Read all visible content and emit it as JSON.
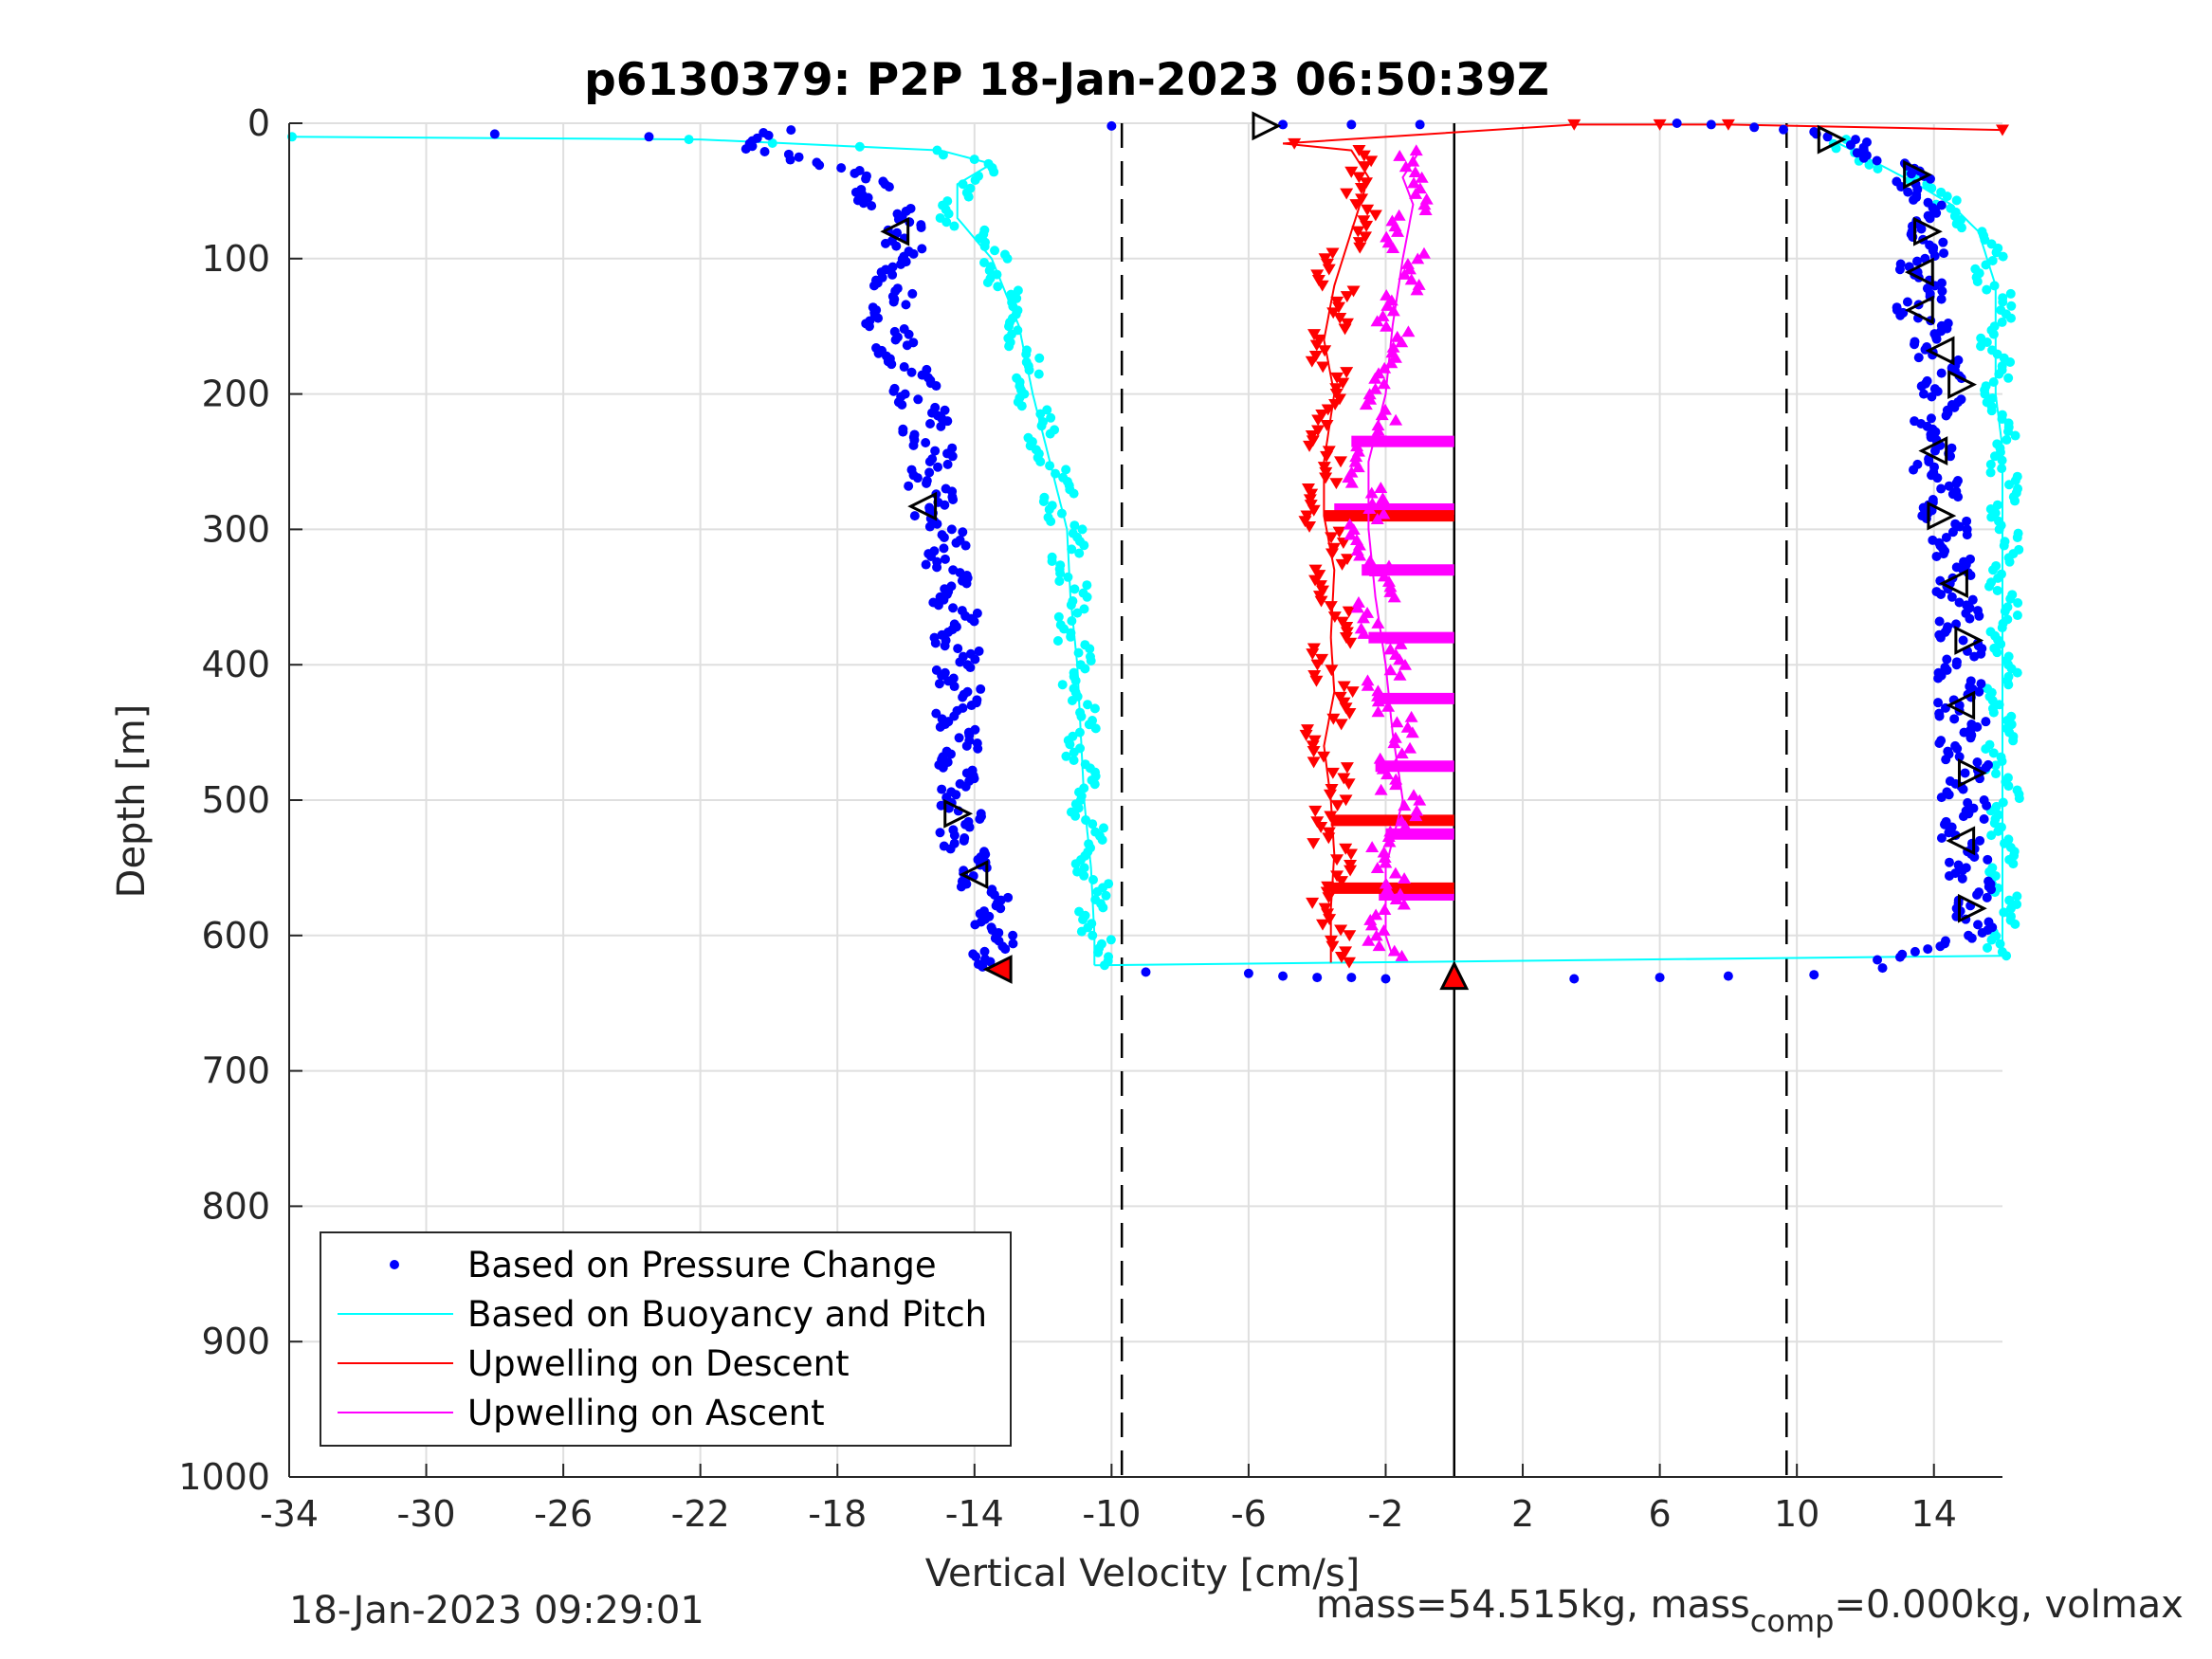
{
  "chart_data": {
    "type": "scatter",
    "title": "p6130379: P2P 18-Jan-2023 06:50:39Z",
    "xlabel": "Vertical Velocity [cm/s]",
    "ylabel": "Depth [m]",
    "xlim": [
      -34,
      16
    ],
    "ylim": [
      0,
      1000
    ],
    "y_reversed": true,
    "xticks": [
      -34,
      -30,
      -26,
      -22,
      -18,
      -14,
      -10,
      -6,
      -2,
      2,
      6,
      10,
      14
    ],
    "yticks": [
      0,
      100,
      200,
      300,
      400,
      500,
      600,
      700,
      800,
      900,
      1000
    ],
    "grid": true,
    "legend_position": "bottom-left",
    "reference_lines": [
      {
        "x": -9.7,
        "style": "dashed"
      },
      {
        "x": 0,
        "style": "solid"
      },
      {
        "x": 9.7,
        "style": "dashed"
      }
    ],
    "series": [
      {
        "name": "Based on Pressure Change",
        "color": "#0000ff",
        "marker": "dot",
        "descent": [
          [
            -20,
            5
          ],
          [
            -21,
            15
          ],
          [
            -19,
            25
          ],
          [
            -17,
            45
          ],
          [
            -16.5,
            65
          ],
          [
            -16,
            85
          ],
          [
            -16.3,
            110
          ],
          [
            -16.5,
            150
          ],
          [
            -16,
            180
          ],
          [
            -15.5,
            210
          ],
          [
            -15.3,
            250
          ],
          [
            -15.2,
            280
          ],
          [
            -14.8,
            320
          ],
          [
            -14.6,
            360
          ],
          [
            -14.5,
            420
          ],
          [
            -14.5,
            470
          ],
          [
            -14.5,
            510
          ],
          [
            -14,
            550
          ],
          [
            -13.5,
            580
          ],
          [
            -13.5,
            610
          ],
          [
            -13.5,
            625
          ]
        ],
        "ascent": [
          [
            8.5,
            3
          ],
          [
            10.5,
            8
          ],
          [
            12,
            18
          ],
          [
            13.5,
            45
          ],
          [
            13.8,
            80
          ],
          [
            13.6,
            110
          ],
          [
            13.6,
            140
          ],
          [
            14.2,
            175
          ],
          [
            14.2,
            200
          ],
          [
            14,
            240
          ],
          [
            14.2,
            280
          ],
          [
            14.5,
            330
          ],
          [
            14.7,
            380
          ],
          [
            14.8,
            430
          ],
          [
            14.9,
            480
          ],
          [
            14.8,
            520
          ],
          [
            15,
            560
          ],
          [
            15.2,
            590
          ],
          [
            14.5,
            610
          ],
          [
            13,
            618
          ]
        ],
        "bottom": [
          [
            -9,
            627
          ],
          [
            -6,
            628
          ],
          [
            -5,
            630
          ],
          [
            -4,
            631
          ],
          [
            -3,
            631
          ],
          [
            -2,
            632
          ],
          [
            3.5,
            632
          ],
          [
            6,
            631
          ],
          [
            8,
            630
          ],
          [
            10.5,
            629
          ],
          [
            12.5,
            624
          ]
        ],
        "surface": [
          [
            -28,
            8
          ],
          [
            -23.5,
            10
          ],
          [
            -10,
            2
          ],
          [
            -5,
            1
          ],
          [
            -3,
            1
          ],
          [
            -1,
            1
          ],
          [
            6.5,
            0
          ],
          [
            7.5,
            1
          ]
        ]
      },
      {
        "name": "Based on Buoyancy and Pitch",
        "color": "#00ffff",
        "marker": "line+dot",
        "descent": [
          [
            -34,
            10
          ],
          [
            -22,
            12
          ],
          [
            -15,
            20
          ],
          [
            -13.5,
            30
          ],
          [
            -14.5,
            45
          ],
          [
            -14.5,
            70
          ],
          [
            -13.5,
            100
          ],
          [
            -12.7,
            150
          ],
          [
            -12.3,
            200
          ],
          [
            -11.8,
            250
          ],
          [
            -11.3,
            300
          ],
          [
            -11.2,
            350
          ],
          [
            -11,
            400
          ],
          [
            -10.9,
            450
          ],
          [
            -10.8,
            500
          ],
          [
            -10.6,
            550
          ],
          [
            -10.5,
            600
          ],
          [
            -10.5,
            622
          ]
        ],
        "ascent": [
          [
            16,
            615
          ],
          [
            16,
            580
          ],
          [
            16,
            520
          ],
          [
            16,
            450
          ],
          [
            16,
            400
          ],
          [
            16,
            330
          ],
          [
            16,
            240
          ],
          [
            15.8,
            200
          ],
          [
            15.8,
            150
          ],
          [
            15.8,
            120
          ],
          [
            15.3,
            80
          ],
          [
            14.5,
            60
          ],
          [
            13.5,
            45
          ],
          [
            12,
            25
          ],
          [
            11,
            12
          ]
        ],
        "bottom": [
          [
            -10.5,
            622
          ],
          [
            16,
            615
          ]
        ]
      },
      {
        "name": "Upwelling on Descent",
        "color": "#ff0000",
        "marker": "triangle-down",
        "points": [
          [
            -5,
            15
          ],
          [
            -3,
            20
          ],
          [
            -2.5,
            40
          ],
          [
            -3,
            80
          ],
          [
            -3.5,
            120
          ],
          [
            -3.8,
            160
          ],
          [
            -3.5,
            200
          ],
          [
            -3.8,
            250
          ],
          [
            -3.8,
            290
          ],
          [
            -3.5,
            330
          ],
          [
            -3.6,
            380
          ],
          [
            -3.5,
            420
          ],
          [
            -3.8,
            460
          ],
          [
            -3.6,
            500
          ],
          [
            -3.5,
            540
          ],
          [
            -3.6,
            580
          ],
          [
            -3.6,
            620
          ]
        ],
        "extra": [
          [
            3.5,
            1
          ],
          [
            6,
            1
          ],
          [
            8,
            1
          ],
          [
            16,
            5
          ]
        ]
      },
      {
        "name": "Upwelling on Ascent",
        "color": "#ff00ff",
        "marker": "triangle-up",
        "points": [
          [
            -1,
            20
          ],
          [
            -1.5,
            40
          ],
          [
            -1.2,
            60
          ],
          [
            -1.5,
            100
          ],
          [
            -1.8,
            150
          ],
          [
            -2,
            200
          ],
          [
            -2.5,
            250
          ],
          [
            -2.5,
            300
          ],
          [
            -2.3,
            350
          ],
          [
            -2,
            400
          ],
          [
            -1.8,
            450
          ],
          [
            -1.5,
            500
          ],
          [
            -2,
            550
          ],
          [
            -2,
            600
          ],
          [
            -1.8,
            615
          ]
        ]
      }
    ],
    "horizontal_bars": [
      {
        "series": "Upwelling on Ascent",
        "depth": 235,
        "from": -3,
        "to": 0
      },
      {
        "series": "Upwelling on Ascent",
        "depth": 285,
        "from": -3.5,
        "to": 0
      },
      {
        "series": "Upwelling on Ascent",
        "depth": 330,
        "from": -2.7,
        "to": 0
      },
      {
        "series": "Upwelling on Ascent",
        "depth": 380,
        "from": -2.5,
        "to": 0
      },
      {
        "series": "Upwelling on Ascent",
        "depth": 425,
        "from": -2.3,
        "to": 0
      },
      {
        "series": "Upwelling on Ascent",
        "depth": 475,
        "from": -2.3,
        "to": 0
      },
      {
        "series": "Upwelling on Ascent",
        "depth": 525,
        "from": -2,
        "to": 0
      },
      {
        "series": "Upwelling on Ascent",
        "depth": 570,
        "from": -2.2,
        "to": 0
      },
      {
        "series": "Upwelling on Descent",
        "depth": 290,
        "from": -3.8,
        "to": 0
      },
      {
        "series": "Upwelling on Descent",
        "depth": 515,
        "from": -3.6,
        "to": 0
      },
      {
        "series": "Upwelling on Descent",
        "depth": 565,
        "from": -3.6,
        "to": 0
      }
    ],
    "triangle_markers": [
      {
        "x": -5.5,
        "y": 2,
        "dir": "right",
        "fill": "none"
      },
      {
        "x": -16.3,
        "y": 80,
        "dir": "left",
        "fill": "none"
      },
      {
        "x": -15.5,
        "y": 283,
        "dir": "left",
        "fill": "none"
      },
      {
        "x": -14.5,
        "y": 510,
        "dir": "right",
        "fill": "none"
      },
      {
        "x": -14,
        "y": 555,
        "dir": "left",
        "fill": "none"
      },
      {
        "x": -13.3,
        "y": 625,
        "dir": "left",
        "fill": "#ff0000"
      },
      {
        "x": 0,
        "y": 630,
        "dir": "up",
        "fill": "#ff0000"
      },
      {
        "x": 11,
        "y": 12,
        "dir": "right",
        "fill": "none"
      },
      {
        "x": 13.5,
        "y": 38,
        "dir": "right",
        "fill": "none"
      },
      {
        "x": 13.8,
        "y": 80,
        "dir": "right",
        "fill": "none"
      },
      {
        "x": 13.6,
        "y": 110,
        "dir": "left",
        "fill": "none"
      },
      {
        "x": 13.6,
        "y": 138,
        "dir": "left",
        "fill": "none"
      },
      {
        "x": 14.2,
        "y": 168,
        "dir": "left",
        "fill": "none"
      },
      {
        "x": 14.8,
        "y": 193,
        "dir": "right",
        "fill": "none"
      },
      {
        "x": 14,
        "y": 242,
        "dir": "left",
        "fill": "none"
      },
      {
        "x": 14.2,
        "y": 290,
        "dir": "right",
        "fill": "none"
      },
      {
        "x": 14.6,
        "y": 340,
        "dir": "left",
        "fill": "none"
      },
      {
        "x": 15,
        "y": 382,
        "dir": "right",
        "fill": "none"
      },
      {
        "x": 14.8,
        "y": 430,
        "dir": "left",
        "fill": "none"
      },
      {
        "x": 15.1,
        "y": 480,
        "dir": "right",
        "fill": "none"
      },
      {
        "x": 14.8,
        "y": 530,
        "dir": "left",
        "fill": "none"
      },
      {
        "x": 15.1,
        "y": 580,
        "dir": "right",
        "fill": "none"
      }
    ]
  },
  "footer": {
    "timestamp": "18-Jan-2023 09:29:01",
    "mass_text": "mass=54.515kg, mass",
    "mass_sub": "comp",
    "mass_rest": "=0.000kg, volmax"
  }
}
